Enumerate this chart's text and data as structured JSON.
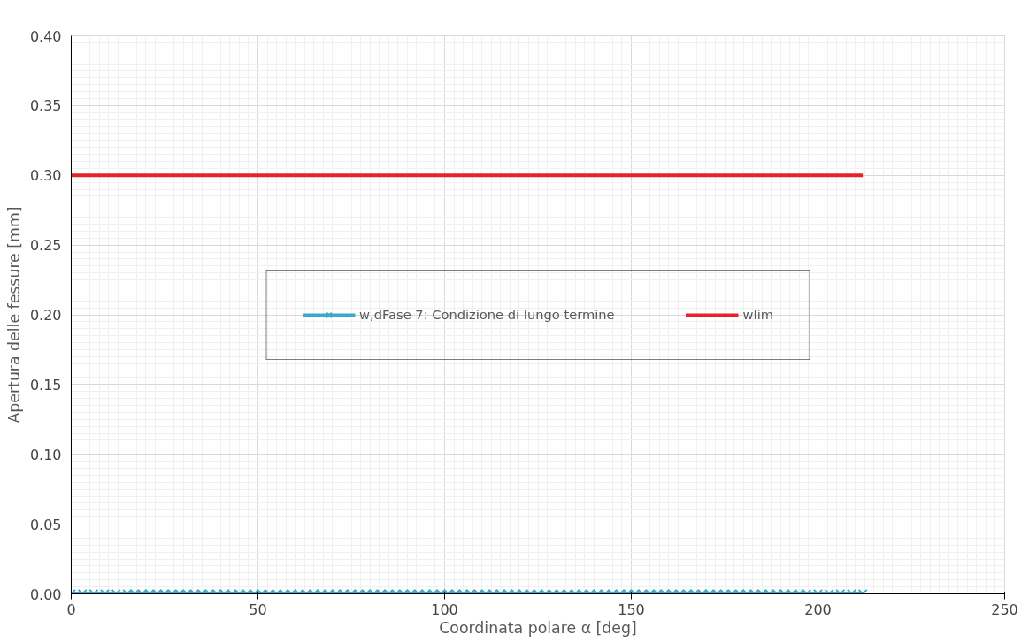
{
  "chart_data": {
    "type": "line",
    "xlabel": "Coordinata polare α [deg]",
    "ylabel": "Apertura delle fessure [mm]",
    "xlim": [
      0,
      250
    ],
    "xticks": [
      0,
      50,
      100,
      150,
      200,
      250
    ],
    "ylim": [
      0,
      0.4
    ],
    "yticks": [
      {
        "value": 0,
        "label": "0.00"
      },
      {
        "value": 0.05,
        "label": "0.05"
      },
      {
        "value": 0.1,
        "label": "0.10"
      },
      {
        "value": 0.15,
        "label": "0.15"
      },
      {
        "value": 0.2,
        "label": "0.20"
      },
      {
        "value": 0.25,
        "label": "0.25"
      },
      {
        "value": 0.3,
        "label": "0.30"
      },
      {
        "value": 0.35,
        "label": "0.35"
      },
      {
        "value": 0.4,
        "label": "0.40"
      }
    ],
    "grid": true,
    "legend": "center",
    "series": [
      {
        "name": "w,dFase 7: Condizione di lungo termine",
        "color": "#3aaac8",
        "marker": "cross",
        "x": [
          0,
          3,
          6,
          9,
          12,
          15,
          17,
          19,
          21,
          23,
          25,
          27,
          29,
          31,
          33,
          35,
          37,
          39,
          41,
          43,
          45,
          47,
          49,
          51,
          53,
          55,
          57,
          59,
          61,
          63,
          65,
          67,
          69,
          71,
          73,
          75,
          77,
          79,
          81,
          83,
          85,
          87,
          89,
          91,
          93,
          95,
          97,
          99,
          101,
          103,
          105,
          107,
          109,
          111,
          113,
          115,
          117,
          119,
          121,
          123,
          125,
          127,
          129,
          131,
          133,
          135,
          137,
          139,
          141,
          143,
          145,
          147,
          149,
          151,
          153,
          155,
          157,
          159,
          161,
          163,
          165,
          167,
          169,
          171,
          173,
          175,
          177,
          179,
          181,
          183,
          185,
          187,
          189,
          191,
          193,
          195,
          197,
          200,
          203,
          206,
          209,
          212
        ],
        "values": [
          0,
          0,
          0,
          0,
          0,
          0,
          0,
          0,
          0,
          0,
          0,
          0,
          0,
          0,
          0,
          0,
          0,
          0,
          0,
          0,
          0,
          0,
          0,
          0,
          0,
          0,
          0,
          0,
          0,
          0,
          0,
          0,
          0,
          0,
          0,
          0,
          0,
          0,
          0,
          0,
          0,
          0,
          0,
          0,
          0,
          0,
          0,
          0,
          0,
          0,
          0,
          0,
          0,
          0,
          0,
          0,
          0,
          0,
          0,
          0,
          0,
          0,
          0,
          0,
          0,
          0,
          0,
          0,
          0,
          0,
          0,
          0,
          0,
          0,
          0,
          0,
          0,
          0,
          0,
          0,
          0,
          0,
          0,
          0,
          0,
          0,
          0,
          0,
          0,
          0,
          0,
          0,
          0,
          0,
          0,
          0,
          0,
          0,
          0,
          0,
          0,
          0
        ]
      },
      {
        "name": "wlim",
        "color": "#e8222a",
        "marker": "none",
        "x": [
          0,
          212
        ],
        "values": [
          0.3,
          0.3
        ]
      }
    ]
  }
}
